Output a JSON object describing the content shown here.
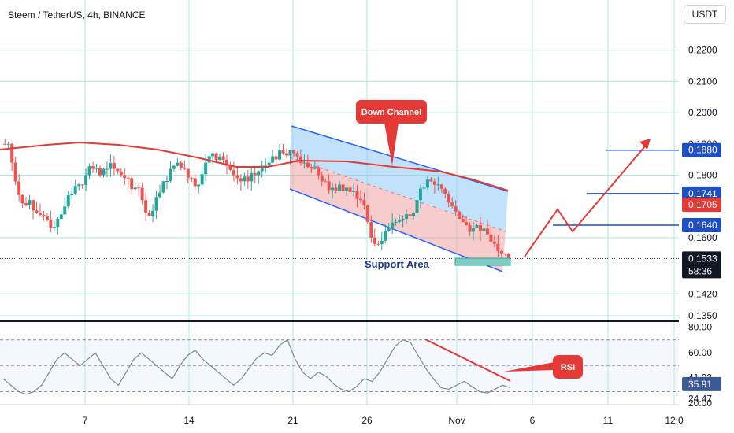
{
  "header": {
    "title": "Steem / TetherUS, 4h, BINANCE",
    "currency_button": "USDT"
  },
  "colors": {
    "bull": "#26a69a",
    "bear": "#ef5350",
    "ma": "#e53935",
    "channel_line": "#2962ff",
    "channel_upper_fill": "#90caf9",
    "channel_lower_fill": "#ef9a9a",
    "support_fill": "#80cbc4",
    "support_text": "#1e3a8a",
    "annotation": "#e53935",
    "projection": "#e53935",
    "resistance": "#1e4fc2",
    "rsi_line": "#7e8794",
    "rsi_trend": "#e53935",
    "grid": "#a8ecd8",
    "current_price_label": "#131722",
    "blue_label": "#1e4fc2",
    "red_label": "#e53935",
    "rsi_label": "#3d5a96"
  },
  "price_axis": {
    "ticks": [
      "0.2200",
      "0.2100",
      "0.2000",
      "0.1800",
      "0.1600",
      "0.1420",
      "0.1350"
    ],
    "tick_values": [
      0.22,
      0.21,
      0.2,
      0.18,
      0.16,
      0.142,
      0.135
    ],
    "range": [
      0.134,
      0.228
    ],
    "labels": [
      {
        "text": "0.1880",
        "value": 0.188,
        "color": "blue"
      },
      {
        "text": "0.1741",
        "value": 0.1741,
        "color": "blue"
      },
      {
        "text": "0.1705",
        "value": 0.1705,
        "color": "red"
      },
      {
        "text": "0.1640",
        "value": 0.164,
        "color": "blue"
      }
    ],
    "current_price": "0.1533",
    "countdown": "58:36",
    "partial_label": "0.1900"
  },
  "time_axis": {
    "labels": [
      "7",
      "14",
      "21",
      "26",
      "Nov",
      "6",
      "11",
      "12:0"
    ]
  },
  "annotations": {
    "down_channel": "Down Channel",
    "support_area": "Support Area",
    "rsi": "RSI"
  },
  "rsi_axis": {
    "ticks": [
      "80.00",
      "60.00",
      "41.03",
      "24.47"
    ],
    "tick_values": [
      80,
      60,
      41.03,
      24.47
    ],
    "current": "35.91",
    "current_value": 35.91,
    "partial_label": "20.00"
  },
  "chart_data": {
    "type": "candlestick",
    "symbol": "Steem / TetherUS",
    "timeframe": "4h",
    "exchange": "BINANCE",
    "current_price": 0.1533,
    "horizontal_levels": [
      0.188,
      0.1741,
      0.164
    ],
    "moving_average_last": 0.1705,
    "price_path": [
      0.19,
      0.178,
      0.171,
      0.172,
      0.168,
      0.167,
      0.163,
      0.166,
      0.17,
      0.174,
      0.177,
      0.18,
      0.182,
      0.18,
      0.182,
      0.182,
      0.18,
      0.179,
      0.176,
      0.172,
      0.167,
      0.173,
      0.178,
      0.182,
      0.184,
      0.182,
      0.179,
      0.177,
      0.184,
      0.187,
      0.186,
      0.183,
      0.18,
      0.178,
      0.178,
      0.18,
      0.183,
      0.184,
      0.185,
      0.187,
      0.188,
      0.186,
      0.184,
      0.182,
      0.18,
      0.178,
      0.176,
      0.177,
      0.176,
      0.175,
      0.172,
      0.165,
      0.158,
      0.159,
      0.163,
      0.165,
      0.166,
      0.167,
      0.172,
      0.176,
      0.178,
      0.177,
      0.174,
      0.17,
      0.166,
      0.164,
      0.163,
      0.162,
      0.161,
      0.158,
      0.155,
      0.153
    ],
    "rsi_path": [
      40,
      35,
      30,
      28,
      30,
      35,
      45,
      55,
      60,
      55,
      50,
      55,
      60,
      50,
      40,
      35,
      45,
      55,
      60,
      55,
      50,
      45,
      40,
      50,
      58,
      62,
      55,
      50,
      45,
      40,
      35,
      40,
      48,
      56,
      60,
      58,
      66,
      70,
      55,
      45,
      40,
      45,
      42,
      36,
      32,
      30,
      34,
      40,
      38,
      45,
      55,
      65,
      70,
      68,
      58,
      48,
      40,
      33,
      32,
      35,
      38,
      34,
      30,
      29,
      32,
      35,
      33
    ],
    "rsi_levels": [
      70,
      50,
      30
    ]
  }
}
